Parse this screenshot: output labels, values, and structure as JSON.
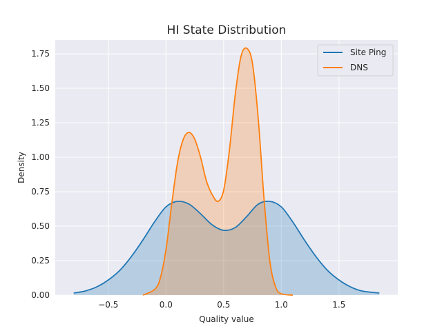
{
  "chart_data": {
    "type": "area",
    "title": "HI State Distribution",
    "xlabel": "Quality value",
    "ylabel": "Density",
    "xlim": [
      -0.96,
      2.01
    ],
    "ylim": [
      0,
      1.85
    ],
    "xticks": [
      -0.5,
      0.0,
      0.5,
      1.0,
      1.5
    ],
    "xtick_labels": [
      "−0.5",
      "0.0",
      "0.5",
      "1.0",
      "1.5"
    ],
    "yticks": [
      0,
      0.25,
      0.5,
      0.75,
      1.0,
      1.25,
      1.5,
      1.75
    ],
    "ytick_labels": [
      "0.00",
      "0.25",
      "0.50",
      "0.75",
      "1.00",
      "1.25",
      "1.50",
      "1.75"
    ],
    "grid": true,
    "legend_position": "top-right",
    "background_color": "#eaeaf2",
    "series": [
      {
        "name": "Site Ping",
        "color": "#1f77b4",
        "fill_color": "#1f77b4",
        "x": [
          -0.8,
          -0.7,
          -0.6,
          -0.5,
          -0.4,
          -0.3,
          -0.2,
          -0.1,
          0.0,
          0.1,
          0.2,
          0.3,
          0.4,
          0.5,
          0.6,
          0.7,
          0.8,
          0.9,
          1.0,
          1.1,
          1.2,
          1.3,
          1.4,
          1.5,
          1.6,
          1.7,
          1.85
        ],
        "y": [
          0.015,
          0.03,
          0.06,
          0.11,
          0.18,
          0.28,
          0.4,
          0.53,
          0.64,
          0.68,
          0.66,
          0.59,
          0.51,
          0.47,
          0.49,
          0.57,
          0.66,
          0.68,
          0.64,
          0.53,
          0.4,
          0.28,
          0.18,
          0.11,
          0.06,
          0.03,
          0.015
        ]
      },
      {
        "name": "DNS",
        "color": "#ff7f0e",
        "fill_color": "#ff7f0e",
        "x": [
          -0.2,
          -0.1,
          -0.05,
          0.0,
          0.05,
          0.1,
          0.15,
          0.2,
          0.25,
          0.3,
          0.35,
          0.4,
          0.45,
          0.5,
          0.55,
          0.6,
          0.65,
          0.7,
          0.75,
          0.8,
          0.85,
          0.9,
          0.95,
          1.0,
          1.1
        ],
        "y": [
          0.0,
          0.04,
          0.12,
          0.33,
          0.66,
          0.96,
          1.13,
          1.18,
          1.13,
          1.0,
          0.83,
          0.73,
          0.68,
          0.76,
          1.05,
          1.45,
          1.73,
          1.79,
          1.68,
          1.28,
          0.7,
          0.25,
          0.06,
          0.01,
          0.0
        ]
      }
    ]
  }
}
